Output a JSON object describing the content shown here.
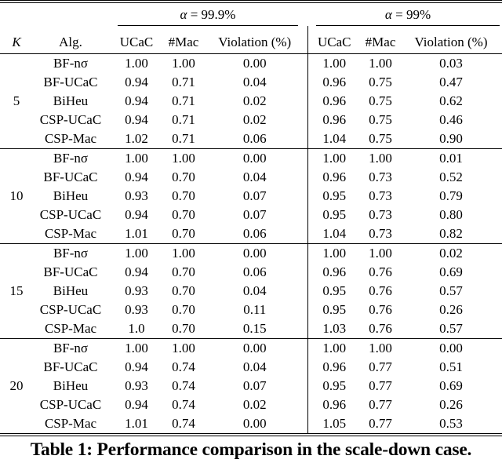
{
  "table": {
    "span_headers": [
      {
        "alpha": "α",
        "rest": " = 99.9%"
      },
      {
        "alpha": "α",
        "rest": " = 99%"
      }
    ],
    "columns": {
      "k": "K",
      "alg": "Alg.",
      "ucac": "UCaC",
      "mac": "#Mac",
      "violation": "Violation (%)"
    },
    "groups": [
      {
        "k": "5",
        "rows": [
          [
            "BF-nσ",
            "1.00",
            "1.00",
            "0.00",
            "1.00",
            "1.00",
            "0.03"
          ],
          [
            "BF-UCaC",
            "0.94",
            "0.71",
            "0.04",
            "0.96",
            "0.75",
            "0.47"
          ],
          [
            "BiHeu",
            "0.94",
            "0.71",
            "0.02",
            "0.96",
            "0.75",
            "0.62"
          ],
          [
            "CSP-UCaC",
            "0.94",
            "0.71",
            "0.02",
            "0.96",
            "0.75",
            "0.46"
          ],
          [
            "CSP-Mac",
            "1.02",
            "0.71",
            "0.06",
            "1.04",
            "0.75",
            "0.90"
          ]
        ]
      },
      {
        "k": "10",
        "rows": [
          [
            "BF-nσ",
            "1.00",
            "1.00",
            "0.00",
            "1.00",
            "1.00",
            "0.01"
          ],
          [
            "BF-UCaC",
            "0.94",
            "0.70",
            "0.04",
            "0.96",
            "0.73",
            "0.52"
          ],
          [
            "BiHeu",
            "0.93",
            "0.70",
            "0.07",
            "0.95",
            "0.73",
            "0.79"
          ],
          [
            "CSP-UCaC",
            "0.94",
            "0.70",
            "0.07",
            "0.95",
            "0.73",
            "0.80"
          ],
          [
            "CSP-Mac",
            "1.01",
            "0.70",
            "0.06",
            "1.04",
            "0.73",
            "0.82"
          ]
        ]
      },
      {
        "k": "15",
        "rows": [
          [
            "BF-nσ",
            "1.00",
            "1.00",
            "0.00",
            "1.00",
            "1.00",
            "0.02"
          ],
          [
            "BF-UCaC",
            "0.94",
            "0.70",
            "0.06",
            "0.96",
            "0.76",
            "0.69"
          ],
          [
            "BiHeu",
            "0.93",
            "0.70",
            "0.04",
            "0.95",
            "0.76",
            "0.57"
          ],
          [
            "CSP-UCaC",
            "0.93",
            "0.70",
            "0.11",
            "0.95",
            "0.76",
            "0.26"
          ],
          [
            "CSP-Mac",
            "1.0",
            "0.70",
            "0.15",
            "1.03",
            "0.76",
            "0.57"
          ]
        ]
      },
      {
        "k": "20",
        "rows": [
          [
            "BF-nσ",
            "1.00",
            "1.00",
            "0.00",
            "1.00",
            "1.00",
            "0.00"
          ],
          [
            "BF-UCaC",
            "0.94",
            "0.74",
            "0.04",
            "0.96",
            "0.77",
            "0.51"
          ],
          [
            "BiHeu",
            "0.93",
            "0.74",
            "0.07",
            "0.95",
            "0.77",
            "0.69"
          ],
          [
            "CSP-UCaC",
            "0.94",
            "0.74",
            "0.02",
            "0.96",
            "0.77",
            "0.26"
          ],
          [
            "CSP-Mac",
            "1.01",
            "0.74",
            "0.00",
            "1.05",
            "0.77",
            "0.53"
          ]
        ]
      }
    ],
    "caption": "Table 1: Performance comparison in the scale-down case."
  }
}
